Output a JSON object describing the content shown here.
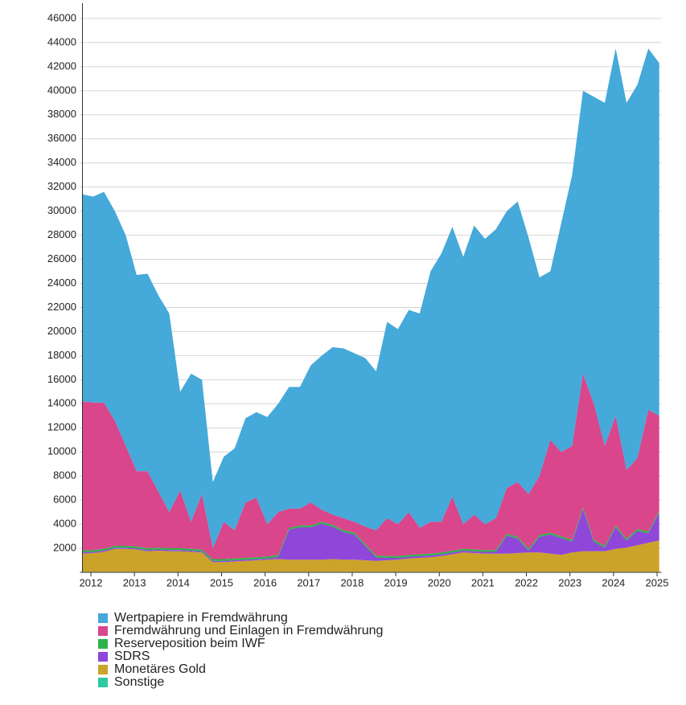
{
  "chart_data": {
    "type": "stacked_area",
    "x": [
      2011.8,
      2012.05,
      2012.3,
      2012.55,
      2012.8,
      2013.05,
      2013.3,
      2013.55,
      2013.8,
      2014.05,
      2014.3,
      2014.55,
      2014.8,
      2015.05,
      2015.3,
      2015.55,
      2015.8,
      2016.05,
      2016.3,
      2016.55,
      2016.8,
      2017.05,
      2017.3,
      2017.55,
      2017.8,
      2018.05,
      2018.3,
      2018.55,
      2018.8,
      2019.05,
      2019.3,
      2019.55,
      2019.8,
      2020.05,
      2020.3,
      2020.55,
      2020.8,
      2021.05,
      2021.3,
      2021.55,
      2021.8,
      2022.05,
      2022.3,
      2022.55,
      2022.8,
      2023.05,
      2023.3,
      2023.55,
      2023.8,
      2024.05,
      2024.3,
      2024.55,
      2024.8,
      2025.05
    ],
    "series": [
      {
        "name": "Sonstige",
        "color": "#2ec9a0",
        "values": [
          50,
          50,
          50,
          50,
          50,
          50,
          50,
          50,
          50,
          50,
          50,
          50,
          50,
          50,
          50,
          50,
          50,
          50,
          50,
          50,
          50,
          50,
          50,
          50,
          50,
          50,
          50,
          50,
          50,
          50,
          50,
          50,
          50,
          50,
          50,
          50,
          50,
          50,
          50,
          50,
          50,
          50,
          50,
          50,
          50,
          50,
          50,
          50,
          50,
          50,
          50,
          50,
          50,
          50
        ]
      },
      {
        "name": "Monetäres Gold",
        "color": "#cca329",
        "values": [
          1500,
          1550,
          1650,
          1900,
          1900,
          1850,
          1700,
          1750,
          1700,
          1700,
          1650,
          1600,
          800,
          800,
          850,
          900,
          950,
          1000,
          1050,
          1000,
          1000,
          1000,
          1000,
          1050,
          1000,
          1000,
          950,
          900,
          950,
          1000,
          1100,
          1150,
          1200,
          1300,
          1450,
          1600,
          1550,
          1500,
          1500,
          1500,
          1550,
          1600,
          1600,
          1500,
          1400,
          1600,
          1700,
          1700,
          1700,
          1900,
          2000,
          2200,
          2400,
          2600
        ]
      },
      {
        "name": "SDRS",
        "color": "#8f47d9",
        "values": [
          100,
          100,
          100,
          100,
          100,
          100,
          100,
          100,
          100,
          100,
          100,
          100,
          100,
          100,
          100,
          100,
          100,
          100,
          200,
          2500,
          2700,
          2700,
          3000,
          2700,
          2300,
          2100,
          1200,
          300,
          200,
          150,
          150,
          150,
          150,
          150,
          150,
          150,
          150,
          150,
          150,
          1500,
          1200,
          150,
          1300,
          1600,
          1400,
          900,
          3500,
          800,
          300,
          1800,
          600,
          1200,
          800,
          2300
        ]
      },
      {
        "name": "Reserveposition beim IWF",
        "color": "#2eb34a",
        "values": [
          150,
          150,
          150,
          150,
          150,
          150,
          150,
          150,
          150,
          150,
          150,
          150,
          150,
          150,
          150,
          150,
          150,
          150,
          150,
          150,
          150,
          150,
          150,
          150,
          150,
          150,
          150,
          150,
          150,
          150,
          150,
          150,
          150,
          150,
          150,
          150,
          150,
          150,
          150,
          150,
          150,
          150,
          150,
          150,
          150,
          150,
          150,
          150,
          150,
          150,
          150,
          150,
          150,
          150
        ]
      },
      {
        "name": "Fremdwährung und Einlagen in Fremdwährung",
        "color": "#d9468b",
        "values": [
          12400,
          12250,
          12150,
          10400,
          8300,
          6250,
          6400,
          4650,
          3000,
          4800,
          2250,
          4600,
          900,
          3100,
          2350,
          4600,
          4950,
          2700,
          3550,
          1600,
          1400,
          1900,
          1000,
          850,
          1000,
          900,
          1450,
          2100,
          3150,
          2650,
          3550,
          2200,
          2650,
          2550,
          4500,
          2050,
          2900,
          2150,
          2650,
          3800,
          4550,
          4550,
          4900,
          7700,
          7000,
          7800,
          11100,
          11300,
          8300,
          9100,
          5700,
          5900,
          10100,
          7900
        ]
      },
      {
        "name": "Wertpapiere in Fremdwährung",
        "color": "#45a9d9",
        "values": [
          17200,
          17100,
          17500,
          17400,
          17500,
          16300,
          16400,
          16300,
          16500,
          8200,
          12300,
          9500,
          5500,
          5400,
          6800,
          7000,
          7100,
          8900,
          9000,
          10100,
          10100,
          11400,
          12800,
          13900,
          14100,
          14000,
          14000,
          13200,
          16300,
          16200,
          16800,
          17800,
          20800,
          22300,
          22400,
          22200,
          24000,
          23700,
          24000,
          23000,
          23300,
          21300,
          16500,
          14000,
          19000,
          22500,
          23500,
          25500,
          28500,
          30500,
          30500,
          31000,
          30000,
          29300
        ]
      }
    ],
    "xlim": [
      2011.75,
      2025.1
    ],
    "xticks": [
      2012,
      2013,
      2014,
      2015,
      2016,
      2017,
      2018,
      2019,
      2020,
      2021,
      2022,
      2023,
      2024,
      2025
    ],
    "ylim": [
      0,
      47000
    ],
    "yticks": [
      2000,
      4000,
      6000,
      8000,
      10000,
      12000,
      14000,
      16000,
      18000,
      20000,
      22000,
      24000,
      26000,
      28000,
      30000,
      32000,
      34000,
      36000,
      38000,
      40000,
      42000,
      44000,
      46000
    ],
    "grid": true
  }
}
